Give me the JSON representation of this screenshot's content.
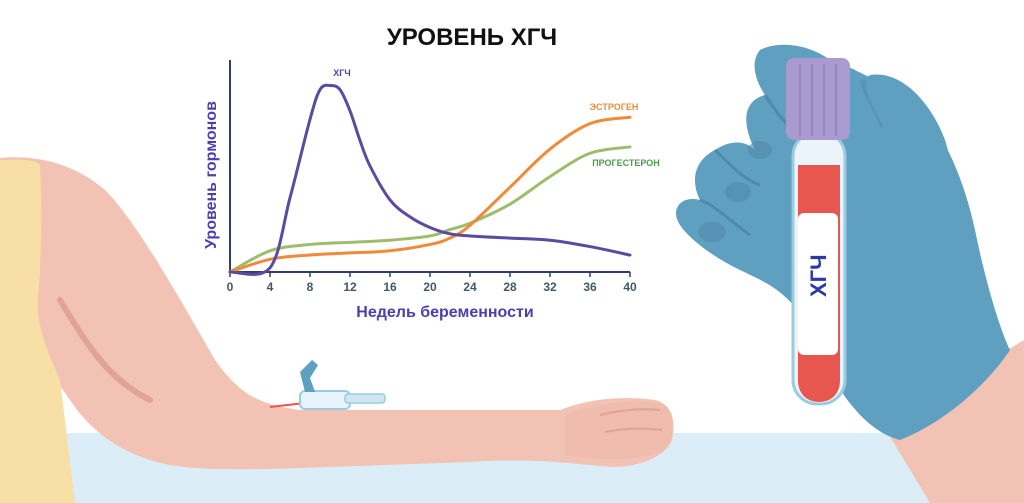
{
  "chart_data": {
    "type": "line",
    "title": "УРОВЕНЬ ХГЧ",
    "xlabel": "Недель беременности",
    "ylabel": "Уровень гормонов",
    "xlim": [
      0,
      40
    ],
    "ylim": [
      0,
      100
    ],
    "x_ticks": [
      0,
      4,
      8,
      12,
      16,
      20,
      24,
      28,
      32,
      36,
      40
    ],
    "grid": false,
    "series": [
      {
        "name": "ХГЧ",
        "color": "#5b4aa0",
        "x": [
          0,
          4,
          6,
          8,
          9,
          10,
          11,
          12,
          13,
          14,
          16,
          18,
          20,
          22,
          24,
          28,
          32,
          36,
          40
        ],
        "y": [
          0,
          2,
          35,
          72,
          86,
          88,
          86,
          76,
          62,
          50,
          34,
          26,
          21,
          18,
          17,
          16,
          15,
          12,
          8
        ]
      },
      {
        "name": "ЭСТРОГЕН",
        "color": "#f08a36",
        "x": [
          0,
          4,
          8,
          12,
          16,
          20,
          22,
          24,
          28,
          32,
          36,
          40
        ],
        "y": [
          0,
          6,
          8,
          9,
          10,
          13,
          16,
          22,
          40,
          58,
          70,
          73
        ]
      },
      {
        "name": "ПРОГЕСТЕРОН",
        "color": "#9dbd6c",
        "x": [
          0,
          4,
          8,
          12,
          16,
          20,
          22,
          24,
          28,
          32,
          36,
          40
        ],
        "y": [
          0,
          10,
          13,
          14,
          15,
          17,
          20,
          23,
          32,
          45,
          56,
          59
        ]
      }
    ]
  },
  "tube_label": "ХГЧ",
  "colors": {
    "glove": "#5f9fc0",
    "glove_shadow": "#4f8aab",
    "skin": "#f2c2b5",
    "skin_shadow": "#e0a497",
    "tank_top": "#f7dfa6",
    "floor": "#dbeef7",
    "tube_cap": "#a99bcf",
    "blood": "#e8574f",
    "axis": "#2f3d6a"
  }
}
